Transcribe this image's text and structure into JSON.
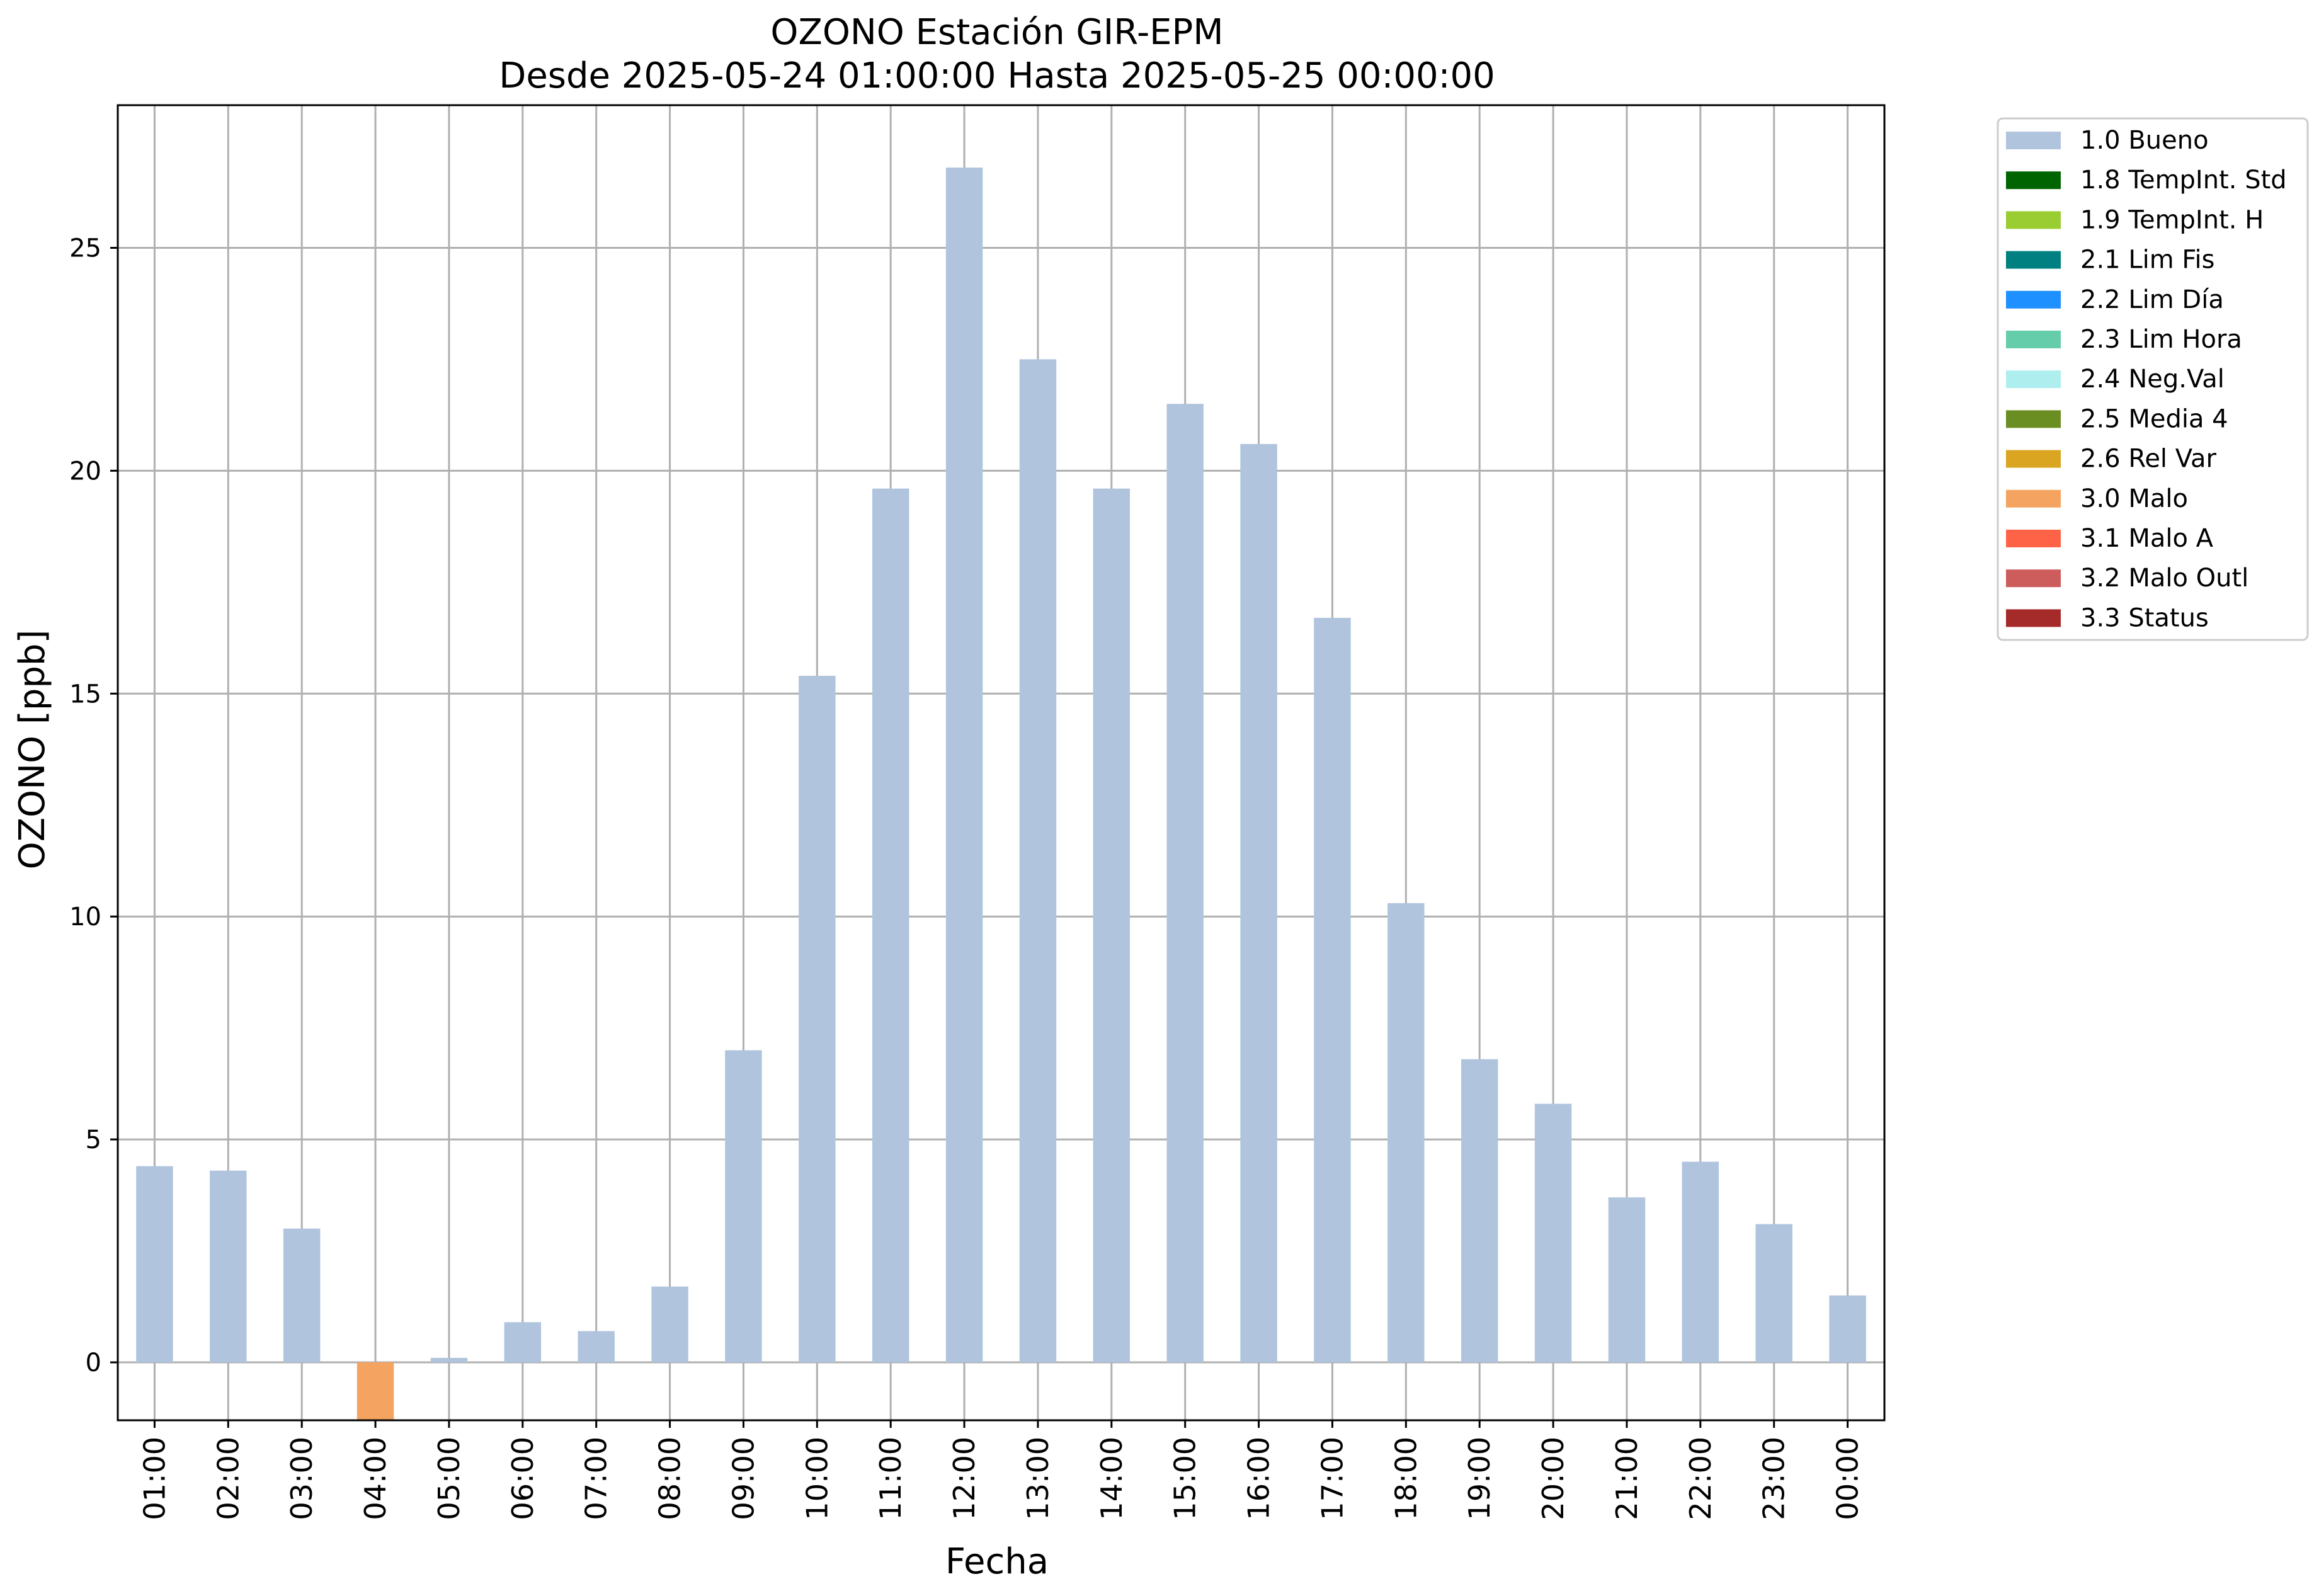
{
  "chart_data": {
    "type": "bar",
    "title": "OZONO Estación GIR-EPM",
    "subtitle": "Desde 2025-05-24 01:00:00 Hasta 2025-05-25 00:00:00",
    "xlabel": "Fecha",
    "ylabel": "OZONO [ppb]",
    "ylim": [
      -1.3,
      28.2
    ],
    "yticks": [
      0,
      5,
      10,
      15,
      20,
      25
    ],
    "grid": true,
    "legend_position": "outside-top-right",
    "categories": [
      "01:00",
      "02:00",
      "03:00",
      "04:00",
      "05:00",
      "06:00",
      "07:00",
      "08:00",
      "09:00",
      "10:00",
      "11:00",
      "12:00",
      "13:00",
      "14:00",
      "15:00",
      "16:00",
      "17:00",
      "18:00",
      "19:00",
      "20:00",
      "21:00",
      "22:00",
      "23:00",
      "00:00"
    ],
    "values": [
      4.4,
      4.3,
      3.0,
      -1.3,
      0.1,
      0.9,
      0.7,
      1.7,
      7.0,
      15.4,
      19.6,
      26.8,
      22.5,
      19.6,
      21.5,
      20.6,
      16.7,
      10.3,
      6.8,
      5.8,
      3.7,
      4.5,
      3.1,
      1.5
    ],
    "flags": [
      "1.0 Bueno",
      "1.0 Bueno",
      "1.0 Bueno",
      "3.0 Malo",
      "1.0 Bueno",
      "1.0 Bueno",
      "1.0 Bueno",
      "1.0 Bueno",
      "1.0 Bueno",
      "1.0 Bueno",
      "1.0 Bueno",
      "1.0 Bueno",
      "1.0 Bueno",
      "1.0 Bueno",
      "1.0 Bueno",
      "1.0 Bueno",
      "1.0 Bueno",
      "1.0 Bueno",
      "1.0 Bueno",
      "1.0 Bueno",
      "1.0 Bueno",
      "1.0 Bueno",
      "1.0 Bueno",
      "1.0 Bueno"
    ],
    "legend": [
      {
        "label": "1.0 Bueno",
        "color": "#b0c4de"
      },
      {
        "label": "1.8 TempInt. Std",
        "color": "#006400"
      },
      {
        "label": "1.9 TempInt. H",
        "color": "#9acd32"
      },
      {
        "label": "2.1 Lim Fis",
        "color": "#008080"
      },
      {
        "label": "2.2 Lim Día",
        "color": "#1e90ff"
      },
      {
        "label": "2.3 Lim Hora",
        "color": "#66cdaa"
      },
      {
        "label": "2.4 Neg.Val",
        "color": "#afeeee"
      },
      {
        "label": "2.5 Media 4",
        "color": "#6b8e23"
      },
      {
        "label": "2.6 Rel Var",
        "color": "#daa520"
      },
      {
        "label": "3.0 Malo",
        "color": "#f4a460"
      },
      {
        "label": "3.1 Malo A",
        "color": "#ff6347"
      },
      {
        "label": "3.2 Malo Outl",
        "color": "#cd5c5c"
      },
      {
        "label": "3.3 Status",
        "color": "#a52a2a"
      }
    ]
  }
}
